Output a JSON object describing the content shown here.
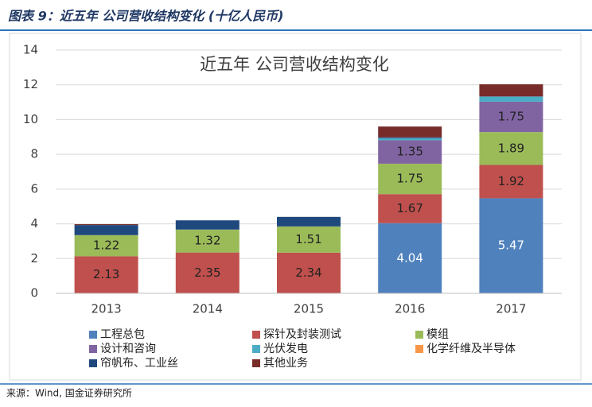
{
  "header": {
    "title": "图表 9：近五年 公司营收结构变化 (十亿人民币)"
  },
  "chart_data": {
    "type": "stacked_bar",
    "title": "近五年 公司营收结构变化",
    "categories": [
      "2013",
      "2014",
      "2015",
      "2016",
      "2017"
    ],
    "series": [
      {
        "name": "工程总包",
        "color": "#4f81bd",
        "values": [
          0,
          0,
          0,
          4.04,
          5.47
        ]
      },
      {
        "name": "探针及封装测试",
        "color": "#c0504d",
        "values": [
          2.13,
          2.35,
          2.34,
          1.67,
          1.92
        ]
      },
      {
        "name": "模组",
        "color": "#9bbb59",
        "values": [
          1.22,
          1.32,
          1.51,
          1.75,
          1.89
        ]
      },
      {
        "name": "设计和咨询",
        "color": "#8064a2",
        "values": [
          0,
          0,
          0,
          1.35,
          1.75
        ]
      },
      {
        "name": "光伏发电",
        "color": "#4bacc6",
        "values": [
          0,
          0,
          0,
          0.12,
          0.3
        ]
      },
      {
        "name": "化学纤维及半导体",
        "color": "#f79646",
        "values": [
          0,
          0,
          0,
          0,
          0
        ]
      },
      {
        "name": "帘帆布、工业丝",
        "color": "#1f497d",
        "values": [
          0.58,
          0.53,
          0.55,
          0.05,
          0
        ]
      },
      {
        "name": "其他业务",
        "color": "#772c2a",
        "values": [
          0.05,
          0,
          0,
          0.62,
          0.7
        ]
      }
    ],
    "ylim": [
      0,
      14
    ],
    "yticks": [
      0,
      2,
      4,
      6,
      8,
      10,
      12,
      14
    ],
    "grid": true
  },
  "footer": {
    "source": "来源：Wind, 国金证券研究所"
  }
}
